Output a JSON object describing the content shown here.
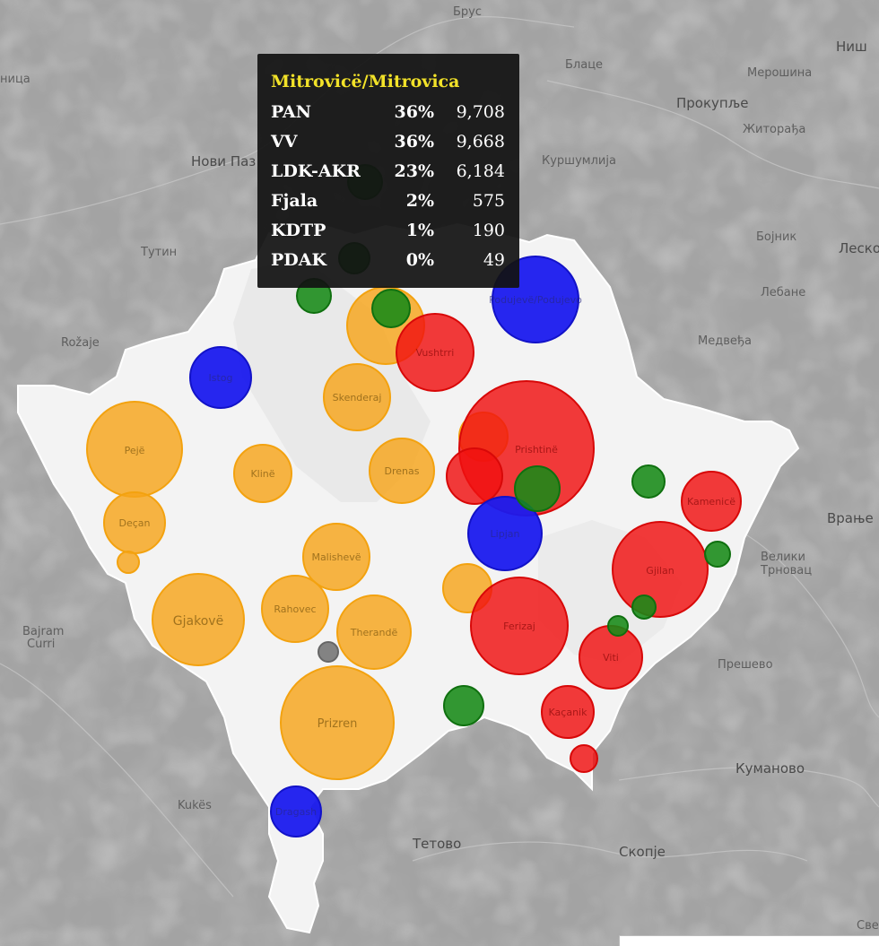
{
  "tooltip": {
    "title": "Mitrovicë/Mitrovica",
    "rows": [
      {
        "party": "PAN",
        "pct": "36%",
        "votes": "9,708"
      },
      {
        "party": "VV",
        "pct": "36%",
        "votes": "9,668"
      },
      {
        "party": "LDK-AKR",
        "pct": "23%",
        "votes": "6,184"
      },
      {
        "party": "Fjala",
        "pct": "2%",
        "votes": "575"
      },
      {
        "party": "KDTP",
        "pct": "1%",
        "votes": "190"
      },
      {
        "party": "PDAK",
        "pct": "0%",
        "votes": "49"
      }
    ]
  },
  "map_labels": {
    "brus": "Брус",
    "blace": "Блаце",
    "merosina": "Мерошина",
    "nis": "Ниш",
    "prokuplje": "Прокупље",
    "zitorada": "Житорађа",
    "novi_pazar": "Нови Паз",
    "kursumlija": "Куршумлија",
    "bojnik": "Бојник",
    "leskovac": "Леско",
    "tutin": "Тутин",
    "lebane": "Лебане",
    "medveda": "Медвеђа",
    "rozaje": "Rožaje",
    "vranje": "Врање",
    "veliki_trnovac_1": "Велики",
    "veliki_trnovac_2": "Трновац",
    "presevo": "Прешево",
    "bajram_curri_1": "Bajram",
    "bajram_curri_2": "Curri",
    "kumanovo": "Куманово",
    "kukes": "Kukës",
    "tetovo": "Тетово",
    "skopje": "Скопје",
    "svet": "Свет",
    "nica": "ница"
  },
  "bubble_labels": {
    "podujeve": "Podujevë/Podujevo",
    "vushtrri": "Vushtrri",
    "istog": "Istog",
    "skenderaj": "Skenderaj",
    "prishtine": "Prishtinë",
    "peje": "Pejë",
    "kline": "Klinë",
    "drenas": "Drenas",
    "decan": "Deçan",
    "lipjan": "Lipjan",
    "kamenice": "Kamenicë",
    "malisheve": "Malishevë",
    "gjilan": "Gjilan",
    "gjakove": "Gjakovë",
    "rahovec": "Rahovec",
    "suhareke": "Therandë",
    "ferizaj": "Ferizaj",
    "viti": "Viti",
    "prizren": "Prizren",
    "kacanik": "Kaçanik",
    "dragash": "Dragash"
  },
  "colors": {
    "orange": "#f7a51b",
    "red": "#f01010",
    "blue": "#1a1aee",
    "green": "#178a17",
    "grey": "#666666",
    "tooltip_title": "#f2e229"
  }
}
